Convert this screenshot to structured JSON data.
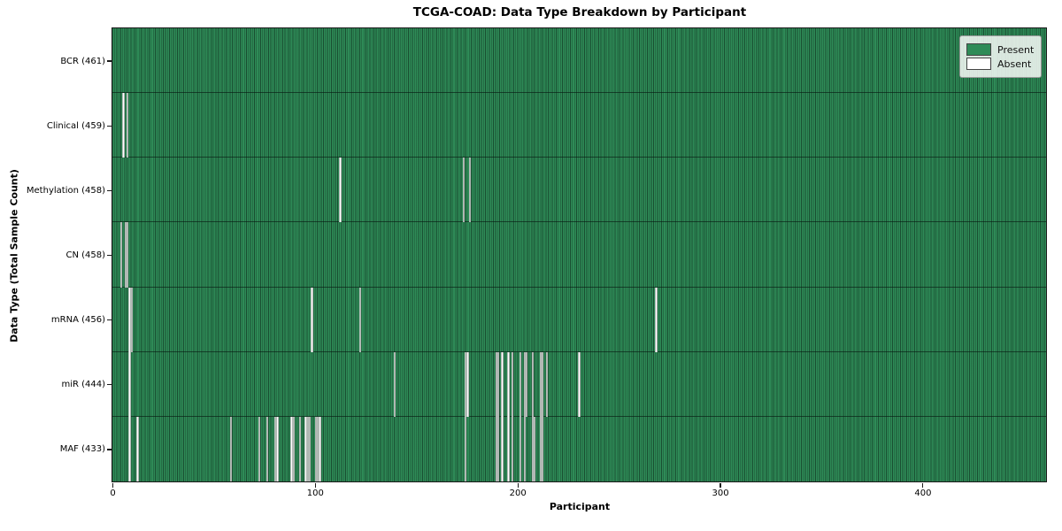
{
  "figure": {
    "title": "TCGA-COAD: Data Type Breakdown by Participant",
    "xlabel": "Participant",
    "ylabel": "Data Type (Total Sample Count)"
  },
  "legend": {
    "items": [
      {
        "name": "present",
        "label": "Present",
        "color": "#2e8b57"
      },
      {
        "name": "absent",
        "label": "Absent",
        "color": "#ffffff"
      }
    ]
  },
  "chart_data": {
    "type": "heatmap",
    "title": "TCGA-COAD: Data Type Breakdown by Participant",
    "xlabel": "Participant",
    "ylabel": "Data Type (Total Sample Count)",
    "n_participants": 461,
    "x_ticks": [
      0,
      100,
      200,
      300,
      400
    ],
    "present_color": "#2e8b57",
    "absent_color": "#ffffff",
    "cell_edge_color": "rgba(8,28,18,0.55)",
    "legend_position": "upper right",
    "grid": false,
    "rows": [
      {
        "data_type": "BCR",
        "label": "BCR (461)",
        "total_samples": 461,
        "present_count": 461,
        "absent_count": 0,
        "absent_indices": []
      },
      {
        "data_type": "Clinical",
        "label": "Clinical (459)",
        "total_samples": 459,
        "present_count": 459,
        "absent_count": 2,
        "absent_indices": [
          5,
          7
        ]
      },
      {
        "data_type": "Methylation",
        "label": "Methylation (458)",
        "total_samples": 458,
        "present_count": 458,
        "absent_count": 3,
        "absent_indices": [
          112,
          173,
          176
        ]
      },
      {
        "data_type": "CN",
        "label": "CN (458)",
        "total_samples": 458,
        "present_count": 458,
        "absent_count": 3,
        "absent_indices": [
          4,
          6,
          7
        ]
      },
      {
        "data_type": "mRNA",
        "label": "mRNA (456)",
        "total_samples": 456,
        "present_count": 456,
        "absent_count": 5,
        "absent_indices": [
          8,
          9,
          98,
          122,
          268
        ]
      },
      {
        "data_type": "miR",
        "label": "miR (444)",
        "total_samples": 444,
        "present_count": 444,
        "absent_count": 17,
        "absent_indices": [
          8,
          139,
          174,
          175,
          189,
          190,
          192,
          195,
          197,
          201,
          203,
          204,
          207,
          211,
          212,
          214,
          230
        ]
      },
      {
        "data_type": "MAF",
        "label": "MAF (433)",
        "total_samples": 433,
        "present_count": 433,
        "absent_count": 28,
        "absent_indices": [
          8,
          12,
          58,
          72,
          76,
          80,
          81,
          88,
          89,
          92,
          95,
          96,
          97,
          100,
          101,
          102,
          174,
          189,
          190,
          192,
          195,
          197,
          201,
          203,
          207,
          208,
          211,
          212
        ]
      }
    ]
  }
}
